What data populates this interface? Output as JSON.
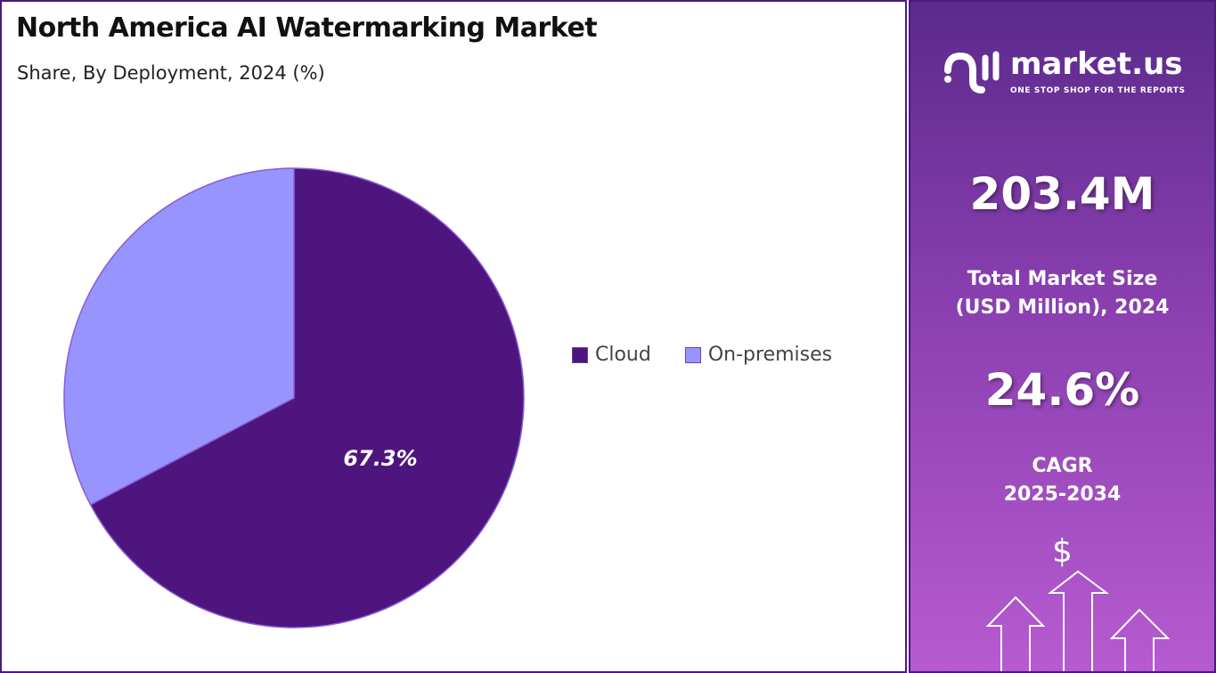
{
  "title": "North America AI Watermarking Market",
  "subtitle": "Share, By Deployment, 2024 (%)",
  "chart_data": {
    "type": "pie",
    "categories": [
      "Cloud",
      "On-premises"
    ],
    "values": [
      67.3,
      32.7
    ],
    "data_labels": [
      "67.3%",
      ""
    ],
    "colors": [
      "#4e157e",
      "#9794fe"
    ],
    "legend_position": "right"
  },
  "sidebar": {
    "logo": {
      "name": "market.us",
      "tagline": "ONE STOP SHOP FOR THE REPORTS"
    },
    "market_size": "203.4M",
    "market_size_label_1": "Total Market Size",
    "market_size_label_2": "(USD Million), 2024",
    "cagr": "24.6%",
    "cagr_label_1": "CAGR",
    "cagr_label_2": "2025-2034",
    "dollar_symbol": "$"
  }
}
